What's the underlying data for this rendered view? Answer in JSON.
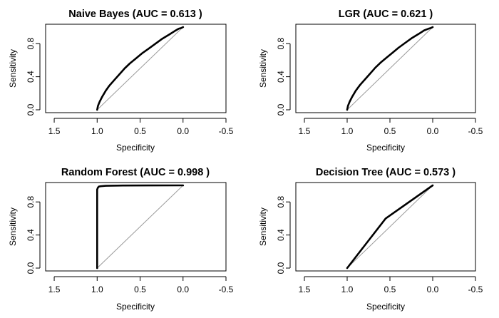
{
  "chart_data": [
    {
      "type": "line",
      "title": "Naive Bayes (AUC = 0.613 )",
      "xlabel": "Specificity",
      "ylabel": "Sensitivity",
      "xlim": [
        1.6,
        -0.5
      ],
      "ylim": [
        0,
        1
      ],
      "x_ticks": [
        "1.5",
        "1.0",
        "0.5",
        "0.0",
        "-0.5"
      ],
      "x_tick_values": [
        1.5,
        1.0,
        0.5,
        0.0,
        -0.5
      ],
      "y_ticks": [
        "0.0",
        "0.4",
        "0.8"
      ],
      "y_tick_values": [
        0.0,
        0.4,
        0.8
      ],
      "reference_line": [
        [
          1,
          0
        ],
        [
          0,
          1
        ]
      ],
      "series": [
        {
          "x": [
            1.0,
            0.99,
            0.97,
            0.94,
            0.9,
            0.86,
            0.8,
            0.74,
            0.68,
            0.62,
            0.55,
            0.48,
            0.4,
            0.32,
            0.24,
            0.16,
            0.1,
            0.05,
            0.02,
            0.0
          ],
          "y": [
            0.0,
            0.05,
            0.1,
            0.16,
            0.23,
            0.29,
            0.36,
            0.43,
            0.5,
            0.56,
            0.62,
            0.68,
            0.74,
            0.8,
            0.86,
            0.91,
            0.95,
            0.98,
            0.99,
            1.0
          ]
        }
      ]
    },
    {
      "type": "line",
      "title": "LGR (AUC = 0.621 )",
      "xlabel": "Specificity",
      "ylabel": "Sensitivity",
      "xlim": [
        1.6,
        -0.5
      ],
      "ylim": [
        0,
        1
      ],
      "x_ticks": [
        "1.5",
        "1.0",
        "0.5",
        "0.0",
        "-0.5"
      ],
      "x_tick_values": [
        1.5,
        1.0,
        0.5,
        0.0,
        -0.5
      ],
      "y_ticks": [
        "0.0",
        "0.4",
        "0.8"
      ],
      "y_tick_values": [
        0.0,
        0.4,
        0.8
      ],
      "reference_line": [
        [
          1,
          0
        ],
        [
          0,
          1
        ]
      ],
      "series": [
        {
          "x": [
            1.0,
            0.99,
            0.97,
            0.94,
            0.9,
            0.85,
            0.79,
            0.73,
            0.67,
            0.61,
            0.54,
            0.47,
            0.4,
            0.32,
            0.24,
            0.16,
            0.1,
            0.05,
            0.02,
            0.0
          ],
          "y": [
            0.0,
            0.05,
            0.1,
            0.16,
            0.23,
            0.3,
            0.37,
            0.44,
            0.51,
            0.57,
            0.63,
            0.69,
            0.75,
            0.81,
            0.87,
            0.92,
            0.96,
            0.98,
            0.99,
            1.0
          ]
        }
      ]
    },
    {
      "type": "line",
      "title": "Random Forest (AUC = 0.998 )",
      "xlabel": "Specificity",
      "ylabel": "Sensitivity",
      "xlim": [
        1.6,
        -0.5
      ],
      "ylim": [
        0,
        1
      ],
      "x_ticks": [
        "1.5",
        "1.0",
        "0.5",
        "0.0",
        "-0.5"
      ],
      "x_tick_values": [
        1.5,
        1.0,
        0.5,
        0.0,
        -0.5
      ],
      "y_ticks": [
        "0.0",
        "0.4",
        "0.8"
      ],
      "y_tick_values": [
        0.0,
        0.4,
        0.8
      ],
      "reference_line": [
        [
          1,
          0
        ],
        [
          0,
          1
        ]
      ],
      "series": [
        {
          "x": [
            1.0,
            1.0,
            1.0,
            0.99,
            0.98,
            0.96,
            0.9,
            0.7,
            0.4,
            0.0
          ],
          "y": [
            0.0,
            0.7,
            0.95,
            0.975,
            0.985,
            0.99,
            0.995,
            0.998,
            0.999,
            1.0
          ]
        }
      ]
    },
    {
      "type": "line",
      "title": "Decision Tree (AUC = 0.573 )",
      "xlabel": "Specificity",
      "ylabel": "Sensitivity",
      "xlim": [
        1.6,
        -0.5
      ],
      "ylim": [
        0,
        1
      ],
      "x_ticks": [
        "1.5",
        "1.0",
        "0.5",
        "0.0",
        "-0.5"
      ],
      "x_tick_values": [
        1.5,
        1.0,
        0.5,
        0.0,
        -0.5
      ],
      "y_ticks": [
        "0.0",
        "0.4",
        "0.8"
      ],
      "y_tick_values": [
        0.0,
        0.4,
        0.8
      ],
      "reference_line": [
        [
          1,
          0
        ],
        [
          0,
          1
        ]
      ],
      "series": [
        {
          "x": [
            1.0,
            0.55,
            0.0
          ],
          "y": [
            0.0,
            0.6,
            1.0
          ]
        }
      ]
    }
  ]
}
